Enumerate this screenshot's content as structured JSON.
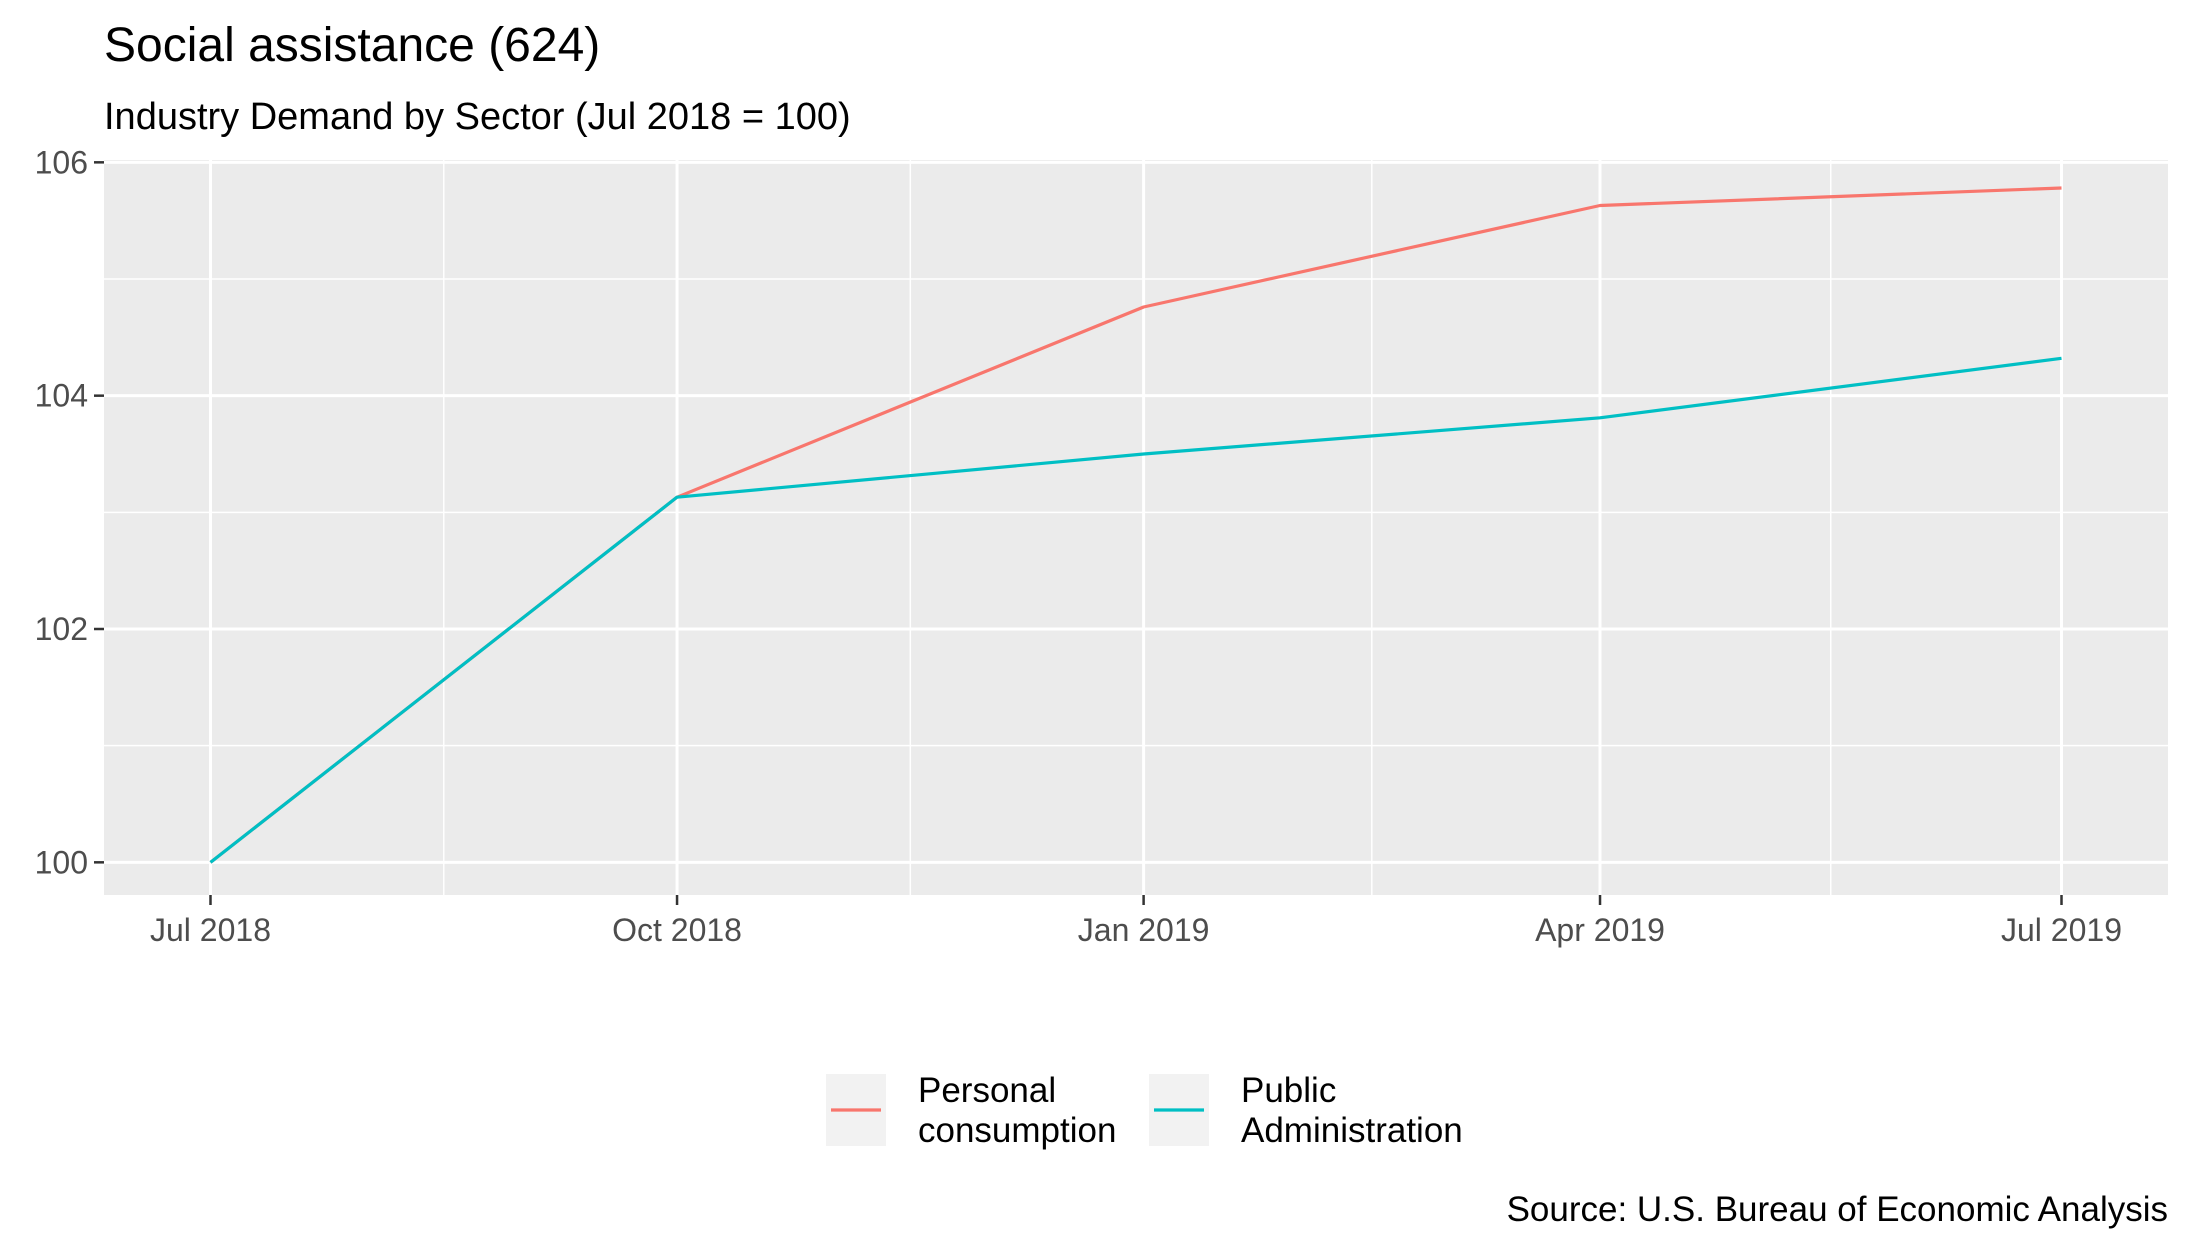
{
  "chart_data": {
    "type": "line",
    "title": "Social assistance (624)",
    "subtitle": "Industry Demand by Sector (Jul 2018 = 100)",
    "caption": "Source: U.S. Bureau of Economic Analysis",
    "xlabel": "",
    "ylabel": "",
    "x": [
      "2018-07-01",
      "2018-10-01",
      "2019-01-01",
      "2019-04-01",
      "2019-07-01"
    ],
    "x_tick_labels": [
      "Jul 2018",
      "Oct 2018",
      "Jan 2019",
      "Apr 2019",
      "Jul 2019"
    ],
    "xlim": [
      "2018-06-10",
      "2019-07-22"
    ],
    "y_ticks": [
      100,
      102,
      104,
      106
    ],
    "y_tick_labels": [
      "100",
      "102",
      "104",
      "106"
    ],
    "ylim": [
      99.72,
      106.02
    ],
    "grid": true,
    "legend_position": "bottom",
    "series": [
      {
        "name": "Personal consumption",
        "label_lines": [
          "Personal",
          "consumption"
        ],
        "color": "#F8766D",
        "values": [
          100.0,
          103.13,
          104.76,
          105.63,
          105.78
        ]
      },
      {
        "name": "Public Administration",
        "label_lines": [
          "Public",
          "Administration"
        ],
        "color": "#00BFC4",
        "values": [
          100.0,
          103.13,
          103.5,
          103.81,
          104.32
        ]
      }
    ]
  }
}
